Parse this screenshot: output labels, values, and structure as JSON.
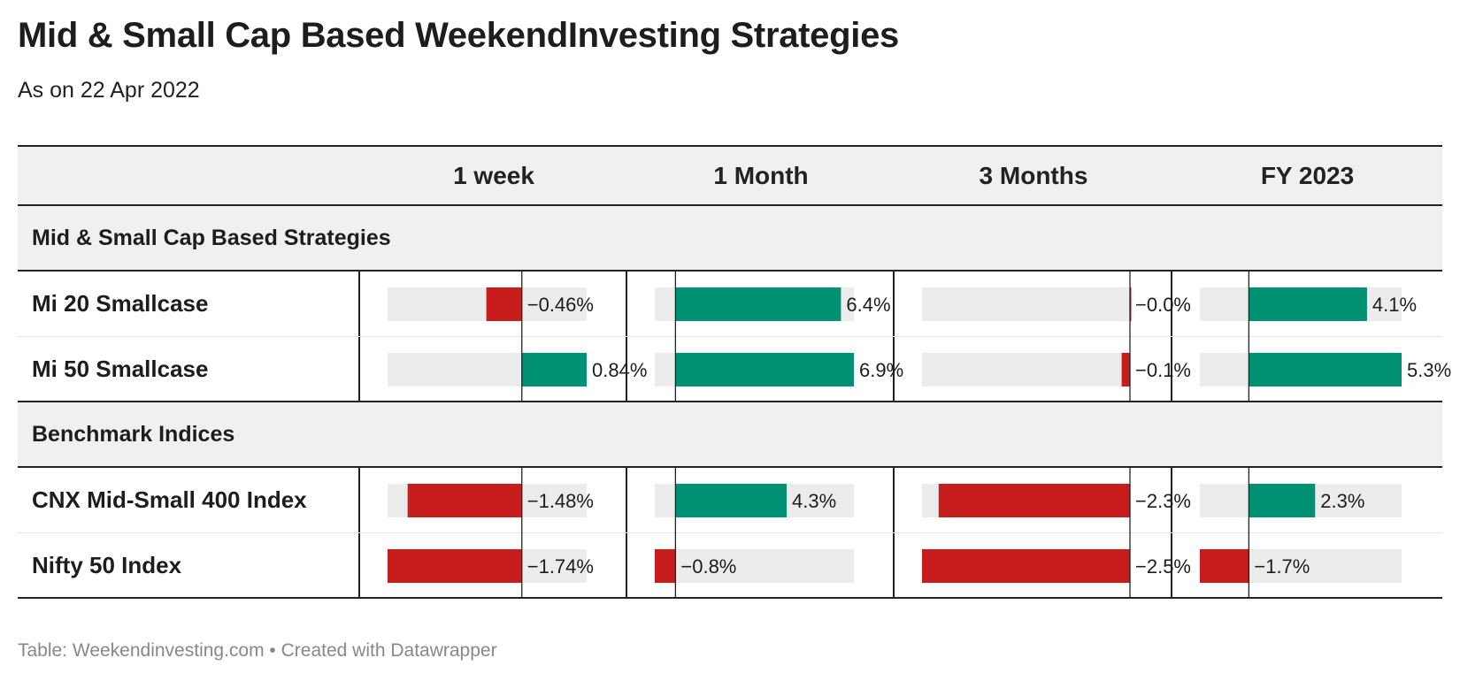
{
  "header": {
    "title": "Mid & Small Cap Based WeekendInvesting Strategies",
    "subtitle": "As on 22 Apr 2022"
  },
  "footer": {
    "text": "Table: Weekendinvesting.com • Created with Datawrapper"
  },
  "colors": {
    "positive": "#009073",
    "negative": "#c71e1d",
    "track": "#ececec",
    "axis": "#222222"
  },
  "chart_data": {
    "type": "table",
    "columns": [
      "1 week",
      "1 Month",
      "3 Months",
      "FY 2023"
    ],
    "column_ranges": [
      [
        -1.74,
        0.84
      ],
      [
        -0.8,
        6.9
      ],
      [
        -2.5,
        0.0
      ],
      [
        -1.7,
        5.3
      ]
    ],
    "groups": [
      {
        "name": "Mid & Small Cap Based Strategies",
        "rows": [
          {
            "name": "Mi 20 Smallcase",
            "values": [
              -0.46,
              6.4,
              -0.0,
              4.1
            ],
            "labels": [
              "−0.46%",
              "6.4%",
              "−0.0%",
              "4.1%"
            ]
          },
          {
            "name": "Mi 50 Smallcase",
            "values": [
              0.84,
              6.9,
              -0.1,
              5.3
            ],
            "labels": [
              "0.84%",
              "6.9%",
              "−0.1%",
              "5.3%"
            ]
          }
        ]
      },
      {
        "name": "Benchmark Indices",
        "rows": [
          {
            "name": "CNX Mid-Small 400 Index",
            "values": [
              -1.48,
              4.3,
              -2.3,
              2.3
            ],
            "labels": [
              "−1.48%",
              "4.3%",
              "−2.3%",
              "2.3%"
            ]
          },
          {
            "name": "Nifty 50 Index",
            "values": [
              -1.74,
              -0.8,
              -2.5,
              -1.7
            ],
            "labels": [
              "−1.74%",
              "−0.8%",
              "−2.5%",
              "−1.7%"
            ]
          }
        ]
      }
    ]
  }
}
